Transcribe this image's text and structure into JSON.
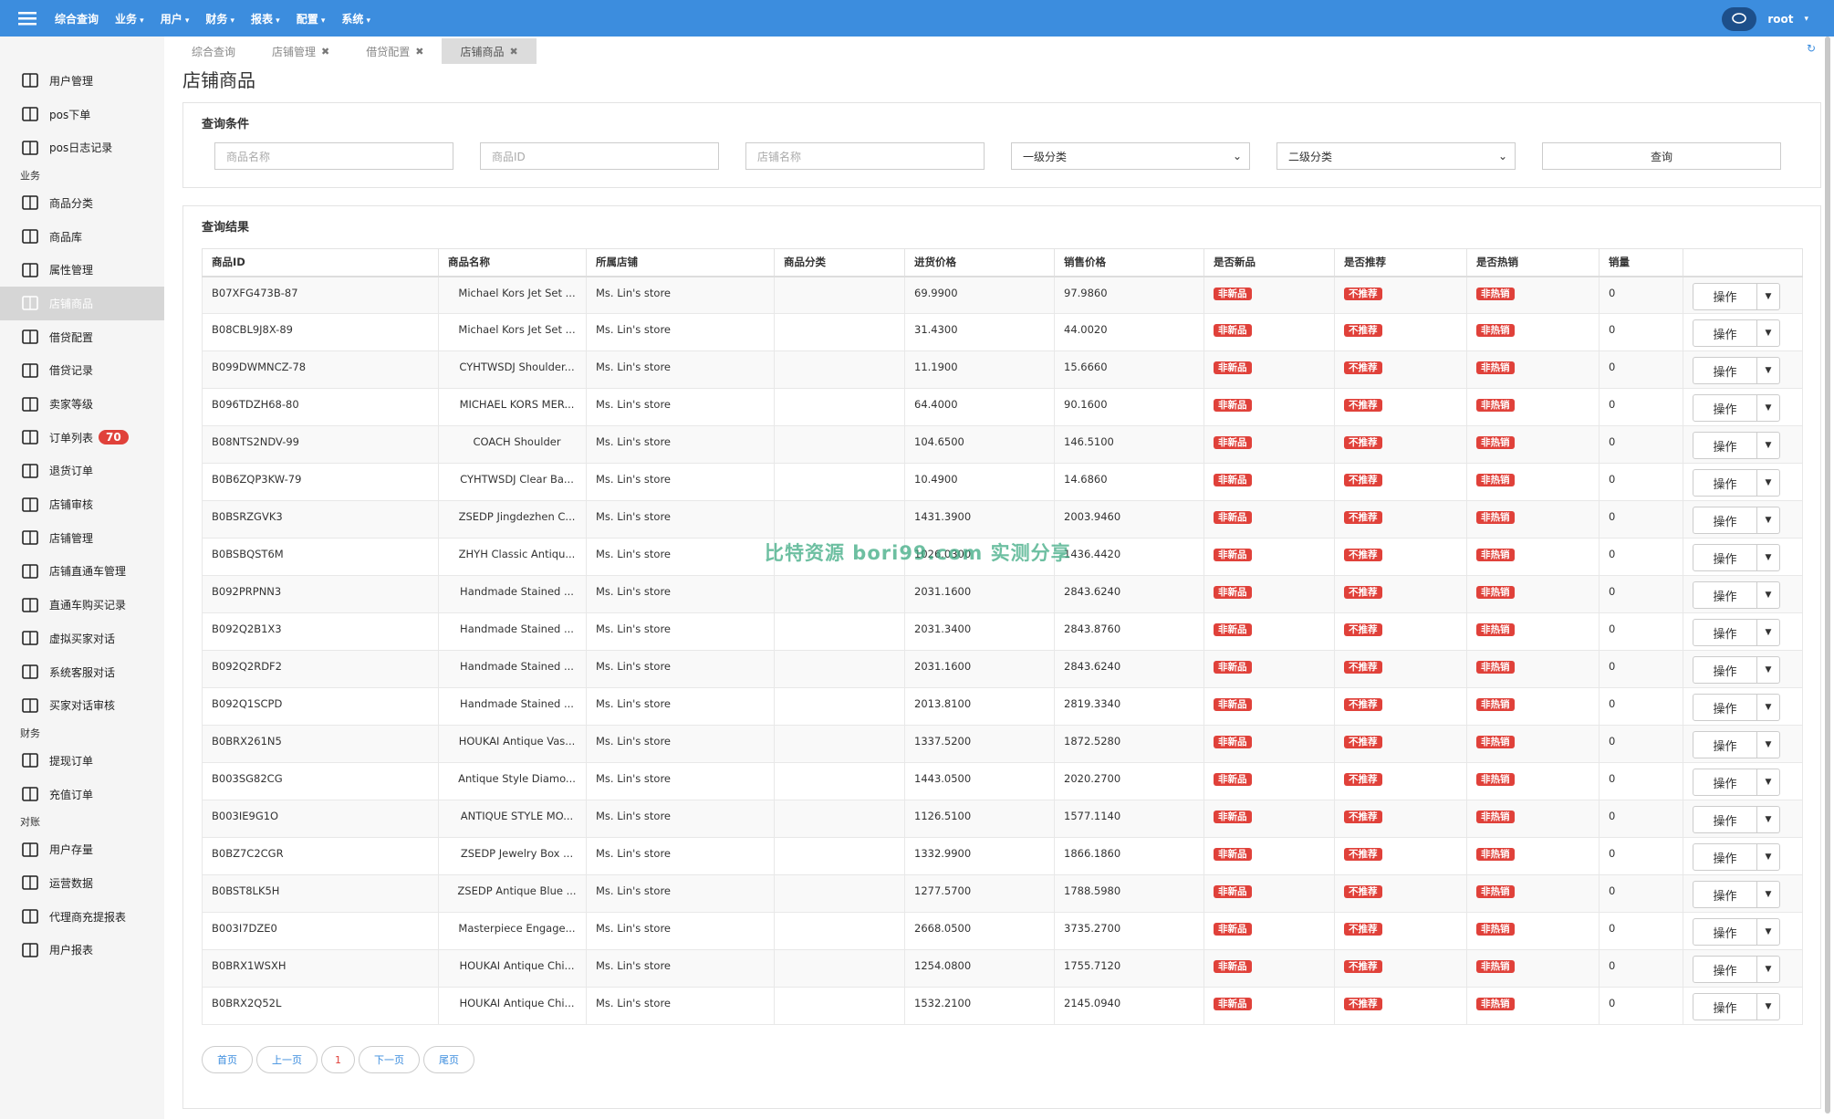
{
  "header": {
    "menu": [
      "综合查询",
      "业务",
      "用户",
      "财务",
      "报表",
      "配置",
      "系统"
    ],
    "user": "root"
  },
  "sidebar": {
    "items": [
      {
        "label": "用户管理"
      },
      {
        "label": "pos下单"
      },
      {
        "label": "pos日志记录"
      },
      {
        "group": "业务"
      },
      {
        "label": "商品分类"
      },
      {
        "label": "商品库"
      },
      {
        "label": "属性管理"
      },
      {
        "label": "店铺商品",
        "active": true
      },
      {
        "label": "借贷配置"
      },
      {
        "label": "借贷记录"
      },
      {
        "label": "卖家等级"
      },
      {
        "label": "订单列表",
        "badge": "70"
      },
      {
        "label": "退货订单"
      },
      {
        "label": "店铺审核"
      },
      {
        "label": "店铺管理"
      },
      {
        "label": "店铺直通车管理"
      },
      {
        "label": "直通车购买记录"
      },
      {
        "label": "虚拟买家对话"
      },
      {
        "label": "系统客服对话"
      },
      {
        "label": "买家对话审核"
      },
      {
        "group": "财务"
      },
      {
        "label": "提现订单"
      },
      {
        "label": "充值订单"
      },
      {
        "group": "对账"
      },
      {
        "label": "用户存量"
      },
      {
        "label": "运营数据"
      },
      {
        "label": "代理商充提报表"
      },
      {
        "label": "用户报表"
      }
    ]
  },
  "tabs": [
    {
      "label": "综合查询"
    },
    {
      "label": "店铺管理",
      "closable": true
    },
    {
      "label": "借贷配置",
      "closable": true
    },
    {
      "label": "店铺商品",
      "closable": true,
      "active": true
    }
  ],
  "page_title": "店铺商品",
  "query": {
    "title": "查询条件",
    "inputs": [
      "商品名称",
      "商品ID",
      "店铺名称"
    ],
    "selects": [
      "一级分类",
      "二级分类"
    ],
    "button": "查询"
  },
  "results": {
    "title": "查询结果",
    "headers": [
      "商品ID",
      "商品名称",
      "所属店铺",
      "商品分类",
      "进货价格",
      "销售价格",
      "是否新品",
      "是否推荐",
      "是否热销",
      "销量"
    ],
    "rows": [
      {
        "id": "B07XFG473B-87",
        "name": "Michael Kors Jet Set ...",
        "store": "Ms. Lin's store",
        "cost": "69.9900",
        "price": "97.9860",
        "new": "非新品",
        "recommend": "不推荐",
        "hot": "非热销",
        "sales": "0",
        "action": "操作"
      },
      {
        "id": "B08CBL9J8X-89",
        "name": "Michael Kors Jet Set ...",
        "store": "Ms. Lin's store",
        "cost": "31.4300",
        "price": "44.0020",
        "new": "非新品",
        "recommend": "不推荐",
        "hot": "非热销",
        "sales": "0",
        "action": "操作"
      },
      {
        "id": "B099DWMNCZ-78",
        "name": "CYHTWSDJ Shoulder...",
        "store": "Ms. Lin's store",
        "cost": "11.1900",
        "price": "15.6660",
        "new": "非新品",
        "recommend": "不推荐",
        "hot": "非热销",
        "sales": "0",
        "action": "操作"
      },
      {
        "id": "B096TDZH68-80",
        "name": "MICHAEL KORS MER...",
        "store": "Ms. Lin's store",
        "cost": "64.4000",
        "price": "90.1600",
        "new": "非新品",
        "recommend": "不推荐",
        "hot": "非热销",
        "sales": "0",
        "action": "操作"
      },
      {
        "id": "B08NTS2NDV-99",
        "name": "COACH Shoulder",
        "store": "Ms. Lin's store",
        "cost": "104.6500",
        "price": "146.5100",
        "new": "非新品",
        "recommend": "不推荐",
        "hot": "非热销",
        "sales": "0",
        "action": "操作"
      },
      {
        "id": "B0B6ZQP3KW-79",
        "name": "CYHTWSDJ Clear Ba...",
        "store": "Ms. Lin's store",
        "cost": "10.4900",
        "price": "14.6860",
        "new": "非新品",
        "recommend": "不推荐",
        "hot": "非热销",
        "sales": "0",
        "action": "操作"
      },
      {
        "id": "B0BSRZGVK3",
        "name": "ZSEDP Jingdezhen C...",
        "store": "Ms. Lin's store",
        "cost": "1431.3900",
        "price": "2003.9460",
        "new": "非新品",
        "recommend": "不推荐",
        "hot": "非热销",
        "sales": "0",
        "action": "操作"
      },
      {
        "id": "B0BSBQST6M",
        "name": "ZHYH Classic Antiqu...",
        "store": "Ms. Lin's store",
        "cost": "1026.0300",
        "price": "1436.4420",
        "new": "非新品",
        "recommend": "不推荐",
        "hot": "非热销",
        "sales": "0",
        "action": "操作"
      },
      {
        "id": "B092PRPNN3",
        "name": "Handmade Stained ...",
        "store": "Ms. Lin's store",
        "cost": "2031.1600",
        "price": "2843.6240",
        "new": "非新品",
        "recommend": "不推荐",
        "hot": "非热销",
        "sales": "0",
        "action": "操作"
      },
      {
        "id": "B092Q2B1X3",
        "name": "Handmade Stained ...",
        "store": "Ms. Lin's store",
        "cost": "2031.3400",
        "price": "2843.8760",
        "new": "非新品",
        "recommend": "不推荐",
        "hot": "非热销",
        "sales": "0",
        "action": "操作"
      },
      {
        "id": "B092Q2RDF2",
        "name": "Handmade Stained ...",
        "store": "Ms. Lin's store",
        "cost": "2031.1600",
        "price": "2843.6240",
        "new": "非新品",
        "recommend": "不推荐",
        "hot": "非热销",
        "sales": "0",
        "action": "操作"
      },
      {
        "id": "B092Q1SCPD",
        "name": "Handmade Stained ...",
        "store": "Ms. Lin's store",
        "cost": "2013.8100",
        "price": "2819.3340",
        "new": "非新品",
        "recommend": "不推荐",
        "hot": "非热销",
        "sales": "0",
        "action": "操作"
      },
      {
        "id": "B0BRX261N5",
        "name": "HOUKAI Antique Vas...",
        "store": "Ms. Lin's store",
        "cost": "1337.5200",
        "price": "1872.5280",
        "new": "非新品",
        "recommend": "不推荐",
        "hot": "非热销",
        "sales": "0",
        "action": "操作"
      },
      {
        "id": "B003SG82CG",
        "name": "Antique Style Diamo...",
        "store": "Ms. Lin's store",
        "cost": "1443.0500",
        "price": "2020.2700",
        "new": "非新品",
        "recommend": "不推荐",
        "hot": "非热销",
        "sales": "0",
        "action": "操作"
      },
      {
        "id": "B003IE9G1O",
        "name": "ANTIQUE STYLE MO...",
        "store": "Ms. Lin's store",
        "cost": "1126.5100",
        "price": "1577.1140",
        "new": "非新品",
        "recommend": "不推荐",
        "hot": "非热销",
        "sales": "0",
        "action": "操作"
      },
      {
        "id": "B0BZ7C2CGR",
        "name": "ZSEDP Jewelry Box ...",
        "store": "Ms. Lin's store",
        "cost": "1332.9900",
        "price": "1866.1860",
        "new": "非新品",
        "recommend": "不推荐",
        "hot": "非热销",
        "sales": "0",
        "action": "操作"
      },
      {
        "id": "B0BST8LK5H",
        "name": "ZSEDP Antique Blue ...",
        "store": "Ms. Lin's store",
        "cost": "1277.5700",
        "price": "1788.5980",
        "new": "非新品",
        "recommend": "不推荐",
        "hot": "非热销",
        "sales": "0",
        "action": "操作"
      },
      {
        "id": "B003I7DZE0",
        "name": "Masterpiece Engage...",
        "store": "Ms. Lin's store",
        "cost": "2668.0500",
        "price": "3735.2700",
        "new": "非新品",
        "recommend": "不推荐",
        "hot": "非热销",
        "sales": "0",
        "action": "操作"
      },
      {
        "id": "B0BRX1WSXH",
        "name": "HOUKAI Antique Chi...",
        "store": "Ms. Lin's store",
        "cost": "1254.0800",
        "price": "1755.7120",
        "new": "非新品",
        "recommend": "不推荐",
        "hot": "非热销",
        "sales": "0",
        "action": "操作"
      },
      {
        "id": "B0BRX2Q52L",
        "name": "HOUKAI Antique Chi...",
        "store": "Ms. Lin's store",
        "cost": "1532.2100",
        "price": "2145.0940",
        "new": "非新品",
        "recommend": "不推荐",
        "hot": "非热销",
        "sales": "0",
        "action": "操作"
      }
    ]
  },
  "pagination": [
    "首页",
    "上一页",
    "1",
    "下一页",
    "尾页"
  ],
  "watermark": "比特资源 bori99.com 实测分享"
}
